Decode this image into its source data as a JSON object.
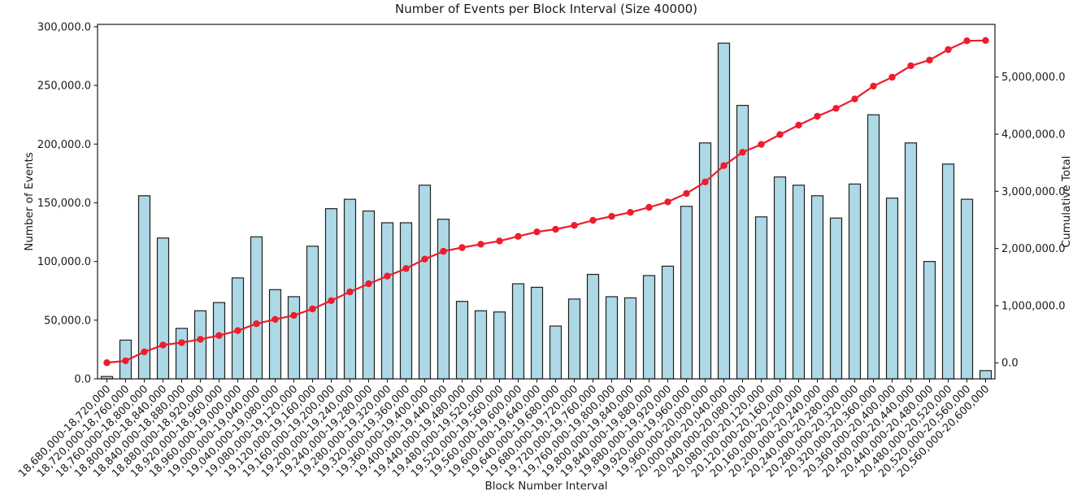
{
  "chart_data": {
    "type": "bar",
    "title": "Number of Events per Block Interval (Size 40000)",
    "xlabel": "Block Number Interval",
    "ylabel_left": "Number of Events",
    "ylabel_right": "Cumulative Total",
    "background": "#ffffff",
    "grid": false,
    "legend": "none",
    "categories": [
      "18,680,000-18,720,000",
      "18,720,000-18,760,000",
      "18,760,000-18,800,000",
      "18,800,000-18,840,000",
      "18,840,000-18,880,000",
      "18,880,000-18,920,000",
      "18,920,000-18,960,000",
      "18,960,000-19,000,000",
      "19,000,000-19,040,000",
      "19,040,000-19,080,000",
      "19,080,000-19,120,000",
      "19,120,000-19,160,000",
      "19,160,000-19,200,000",
      "19,200,000-19,240,000",
      "19,240,000-19,280,000",
      "19,280,000-19,320,000",
      "19,320,000-19,360,000",
      "19,360,000-19,400,000",
      "19,400,000-19,440,000",
      "19,440,000-19,480,000",
      "19,480,000-19,520,000",
      "19,520,000-19,560,000",
      "19,560,000-19,600,000",
      "19,600,000-19,640,000",
      "19,640,000-19,680,000",
      "19,680,000-19,720,000",
      "19,720,000-19,760,000",
      "19,760,000-19,800,000",
      "19,800,000-19,840,000",
      "19,840,000-19,880,000",
      "19,880,000-19,920,000",
      "19,920,000-19,960,000",
      "19,960,000-20,000,000",
      "20,000,000-20,040,000",
      "20,040,000-20,080,000",
      "20,080,000-20,120,000",
      "20,120,000-20,160,000",
      "20,160,000-20,200,000",
      "20,200,000-20,240,000",
      "20,240,000-20,280,000",
      "20,280,000-20,320,000",
      "20,320,000-20,360,000",
      "20,360,000-20,400,000",
      "20,400,000-20,440,000",
      "20,440,000-20,480,000",
      "20,480,000-20,520,000",
      "20,520,000-20,560,000",
      "20,560,000-20,600,000"
    ],
    "series": [
      {
        "name": "Number of Events",
        "type": "bar",
        "axis": "left",
        "color": "#ADD8E6",
        "edge_color": "#1f1f1f",
        "values": [
          2000,
          33000,
          156000,
          120000,
          43000,
          58000,
          65000,
          86000,
          121000,
          76000,
          70000,
          113000,
          145000,
          153000,
          143000,
          133000,
          133000,
          165000,
          136000,
          66000,
          58000,
          57000,
          81000,
          78000,
          45000,
          68000,
          89000,
          70000,
          69000,
          88000,
          96000,
          147000,
          201000,
          286000,
          233000,
          138000,
          172000,
          165000,
          156000,
          137000,
          166000,
          225000,
          154000,
          201000,
          100000,
          183000,
          153000,
          7000
        ]
      },
      {
        "name": "Cumulative Total",
        "type": "line",
        "axis": "right",
        "color": "#ee1c2c",
        "marker": "circle",
        "values": [
          2000,
          35000,
          191000,
          311000,
          354000,
          412000,
          477000,
          563000,
          684000,
          760000,
          830000,
          943000,
          1088000,
          1241000,
          1384000,
          1517000,
          1650000,
          1815000,
          1951000,
          2017000,
          2075000,
          2132000,
          2213000,
          2291000,
          2336000,
          2404000,
          2493000,
          2563000,
          2632000,
          2720000,
          2816000,
          2963000,
          3164000,
          3450000,
          3683000,
          3821000,
          3993000,
          4158000,
          4314000,
          4451000,
          4617000,
          4842000,
          4996000,
          5197000,
          5297000,
          5480000,
          5633000,
          5640000
        ]
      }
    ],
    "left_axis": {
      "min": 0,
      "max": 302000,
      "ticks": [
        {
          "value": 0,
          "label": "0.0"
        },
        {
          "value": 50000,
          "label": "50,000.0"
        },
        {
          "value": 100000,
          "label": "100,000.0"
        },
        {
          "value": 150000,
          "label": "150,000.0"
        },
        {
          "value": 200000,
          "label": "200,000.0"
        },
        {
          "value": 250000,
          "label": "250,000.0"
        },
        {
          "value": 300000,
          "label": "300,000.0"
        }
      ]
    },
    "right_axis": {
      "min": -281000,
      "max": 5921000,
      "ticks": [
        {
          "value": 0,
          "label": "0.0"
        },
        {
          "value": 1000000,
          "label": "1,000,000.0"
        },
        {
          "value": 2000000,
          "label": "2,000,000.0"
        },
        {
          "value": 3000000,
          "label": "3,000,000.0"
        },
        {
          "value": 4000000,
          "label": "4,000,000.0"
        },
        {
          "value": 5000000,
          "label": "5,000,000.0"
        }
      ]
    }
  }
}
